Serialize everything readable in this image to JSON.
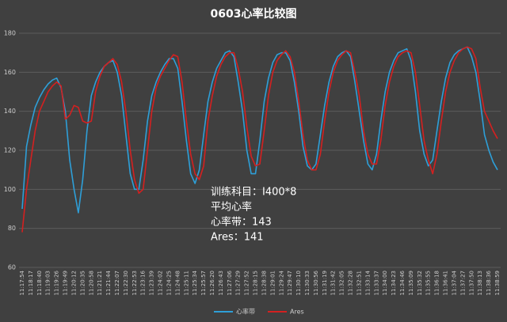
{
  "chart_data": {
    "type": "line",
    "title": "0603心率比较图",
    "categories": [
      "11:17:54",
      null,
      "11:18:17",
      null,
      "11:18:40",
      null,
      "11:19:03",
      null,
      "11:19:26",
      null,
      "11:19:49",
      null,
      "11:20:12",
      null,
      "11:20:35",
      null,
      "11:20:58",
      null,
      "11:21:21",
      null,
      "11:21:44",
      null,
      "11:22:07",
      null,
      "11:22:30",
      null,
      "11:22:53",
      null,
      "11:23:16",
      null,
      "11:23:39",
      null,
      "11:24:02",
      null,
      "11:24:25",
      null,
      "11:24:48",
      null,
      "11:25:11",
      null,
      "11:25:34",
      null,
      "11:25:57",
      null,
      "11:26:20",
      null,
      "11:26:43",
      null,
      "11:27:06",
      null,
      "11:27:29",
      null,
      "11:27:52",
      null,
      "11:28:15",
      null,
      "11:28:38",
      null,
      "11:29:01",
      null,
      "11:29:24",
      null,
      "11:29:47",
      null,
      "11:30:10",
      null,
      "11:30:33",
      null,
      "11:30:56",
      null,
      "11:31:19",
      null,
      "11:31:42",
      null,
      "11:32:05",
      null,
      "11:32:28",
      null,
      "11:32:51",
      null,
      "11:33:14",
      null,
      "11:33:37",
      null,
      "11:34:00",
      null,
      "11:34:23",
      null,
      "11:34:46",
      null,
      "11:35:09",
      null,
      "11:35:32",
      null,
      "11:35:55",
      null,
      "11:36:18",
      null,
      "11:36:41",
      null,
      "11:37:04",
      null,
      "11:37:27",
      null,
      "11:37:50",
      null,
      "11:38:13",
      null,
      "11:38:36",
      null,
      "11:38:59"
    ],
    "series": [
      {
        "name": "心率带",
        "color": "#2e9fd8",
        "values": [
          90,
          122,
          133,
          142,
          147,
          151,
          154,
          156,
          157,
          152,
          140,
          115,
          100,
          88,
          105,
          130,
          148,
          155,
          160,
          163,
          165,
          166,
          160,
          148,
          128,
          108,
          100,
          100,
          115,
          135,
          148,
          155,
          160,
          164,
          167,
          167,
          162,
          145,
          125,
          108,
          103,
          110,
          128,
          145,
          155,
          162,
          166,
          170,
          171,
          168,
          155,
          140,
          120,
          108,
          108,
          125,
          145,
          157,
          165,
          169,
          170,
          170,
          166,
          155,
          140,
          122,
          112,
          110,
          113,
          128,
          143,
          155,
          163,
          168,
          170,
          171,
          168,
          155,
          140,
          125,
          113,
          110,
          118,
          135,
          150,
          160,
          166,
          170,
          171,
          172,
          166,
          150,
          130,
          118,
          112,
          115,
          130,
          145,
          157,
          165,
          169,
          171,
          172,
          173,
          168,
          160,
          145,
          128,
          120,
          114,
          110
        ]
      },
      {
        "name": "Ares",
        "color": "#d42020",
        "values": [
          78,
          100,
          115,
          130,
          140,
          145,
          150,
          153,
          155,
          153,
          136,
          138,
          143,
          142,
          135,
          134,
          135,
          150,
          158,
          163,
          165,
          167,
          164,
          155,
          140,
          120,
          105,
          98,
          100,
          120,
          140,
          152,
          158,
          162,
          166,
          169,
          168,
          155,
          135,
          118,
          108,
          105,
          112,
          135,
          148,
          158,
          164,
          168,
          170,
          170,
          162,
          150,
          132,
          117,
          112,
          113,
          130,
          148,
          160,
          166,
          169,
          171,
          168,
          160,
          145,
          128,
          115,
          110,
          110,
          118,
          135,
          150,
          160,
          166,
          169,
          171,
          170,
          160,
          148,
          130,
          118,
          113,
          113,
          125,
          143,
          155,
          163,
          168,
          170,
          171,
          170,
          160,
          143,
          125,
          115,
          108,
          118,
          135,
          150,
          160,
          166,
          170,
          172,
          173,
          172,
          167,
          152,
          140,
          135,
          130,
          126
        ]
      }
    ],
    "ylim": [
      60,
      180
    ],
    "yticks": [
      60,
      80,
      100,
      120,
      140,
      160,
      180
    ],
    "grid": true,
    "legend": "bottom",
    "annotations": [
      "训练科目：I400*8",
      "平均心率",
      "心率带：143",
      "Ares：141"
    ]
  }
}
